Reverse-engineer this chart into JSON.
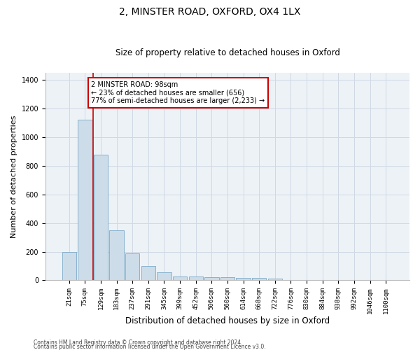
{
  "title1": "2, MINSTER ROAD, OXFORD, OX4 1LX",
  "title2": "Size of property relative to detached houses in Oxford",
  "xlabel": "Distribution of detached houses by size in Oxford",
  "ylabel": "Number of detached properties",
  "categories": [
    "21sqm",
    "75sqm",
    "129sqm",
    "183sqm",
    "237sqm",
    "291sqm",
    "345sqm",
    "399sqm",
    "452sqm",
    "506sqm",
    "560sqm",
    "614sqm",
    "668sqm",
    "722sqm",
    "776sqm",
    "830sqm",
    "884sqm",
    "938sqm",
    "992sqm",
    "1046sqm",
    "1100sqm"
  ],
  "values": [
    200,
    1120,
    880,
    350,
    190,
    100,
    55,
    25,
    25,
    20,
    20,
    15,
    15,
    10,
    0,
    0,
    0,
    0,
    0,
    0,
    0
  ],
  "bar_color": "#ccdce8",
  "bar_edge_color": "#7aaac8",
  "grid_color": "#d0d8e4",
  "bg_color": "#edf2f7",
  "vline_x": 1.5,
  "vline_color": "#cc0000",
  "annotation_text": "2 MINSTER ROAD: 98sqm\n← 23% of detached houses are smaller (656)\n77% of semi-detached houses are larger (2,233) →",
  "annotation_box_color": "#cc0000",
  "ylim": [
    0,
    1450
  ],
  "yticks": [
    0,
    200,
    400,
    600,
    800,
    1000,
    1200,
    1400
  ],
  "footer1": "Contains HM Land Registry data © Crown copyright and database right 2024.",
  "footer2": "Contains public sector information licensed under the Open Government Licence v3.0.",
  "title1_fontsize": 10,
  "title2_fontsize": 8.5,
  "tick_fontsize": 6.5,
  "ylabel_fontsize": 8,
  "xlabel_fontsize": 8.5,
  "annotation_fontsize": 7,
  "footer_fontsize": 5.5
}
